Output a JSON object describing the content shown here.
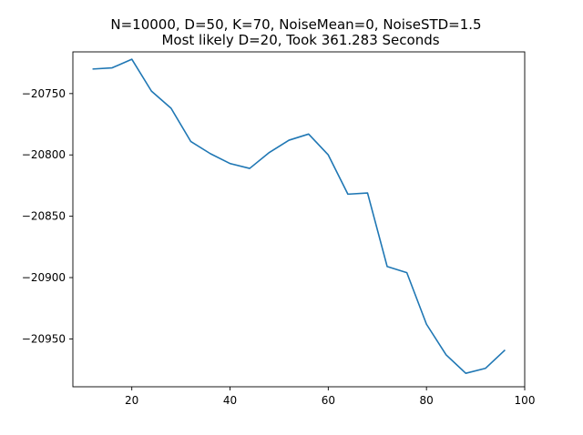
{
  "chart_data": {
    "type": "line",
    "title": "N=10000, D=50, K=70, NoiseMean=0, NoiseSTD=1.5",
    "subtitle": "Most likely D=20, Took 361.283 Seconds",
    "xlabel": "",
    "ylabel": "",
    "xlim": [
      8,
      100
    ],
    "ylim": [
      -20989,
      -20716
    ],
    "xticks": [
      20,
      40,
      60,
      80,
      100
    ],
    "yticks": [
      -20950,
      -20900,
      -20850,
      -20800,
      -20750
    ],
    "xtick_labels": [
      "20",
      "40",
      "60",
      "80",
      "100"
    ],
    "ytick_labels": [
      "−20950",
      "−20900",
      "−20850",
      "−20800",
      "−20750"
    ],
    "grid": false,
    "legend": "none",
    "series": [
      {
        "color": "#1f77b4",
        "x": [
          12,
          16,
          20,
          24,
          28,
          32,
          36,
          40,
          44,
          48,
          52,
          56,
          60,
          64,
          68,
          72,
          76,
          80,
          84,
          88,
          92,
          96
        ],
        "y": [
          -20730,
          -20729,
          -20722,
          -20748,
          -20762,
          -20789,
          -20799,
          -20807,
          -20811,
          -20798,
          -20788,
          -20783,
          -20800,
          -20832,
          -20831,
          -20891,
          -20896,
          -20938,
          -20963,
          -20978,
          -20974,
          -20959
        ]
      }
    ]
  }
}
